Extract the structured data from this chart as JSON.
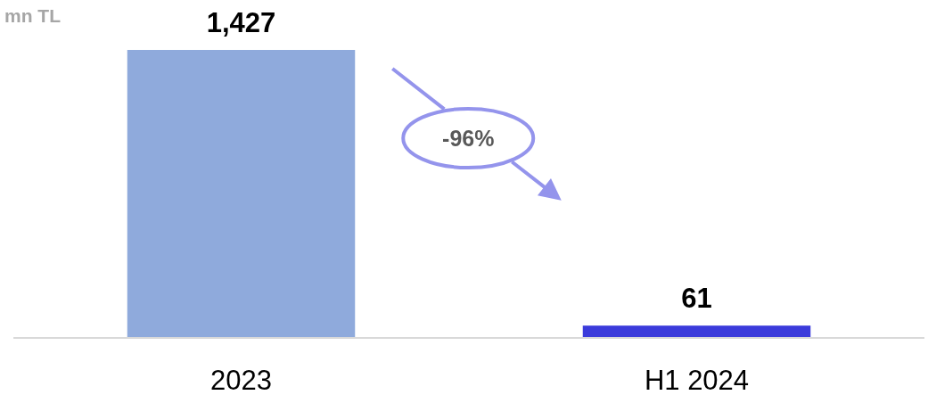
{
  "chart_data": {
    "type": "bar",
    "ylabel": "mn TL",
    "categories": [
      "2023",
      "H1 2024"
    ],
    "values": [
      1427,
      61
    ],
    "colors": [
      "#8faadc",
      "#3b3bdb"
    ],
    "value_labels": [
      "1,427",
      "61"
    ],
    "annotations": [
      "-96%"
    ]
  }
}
